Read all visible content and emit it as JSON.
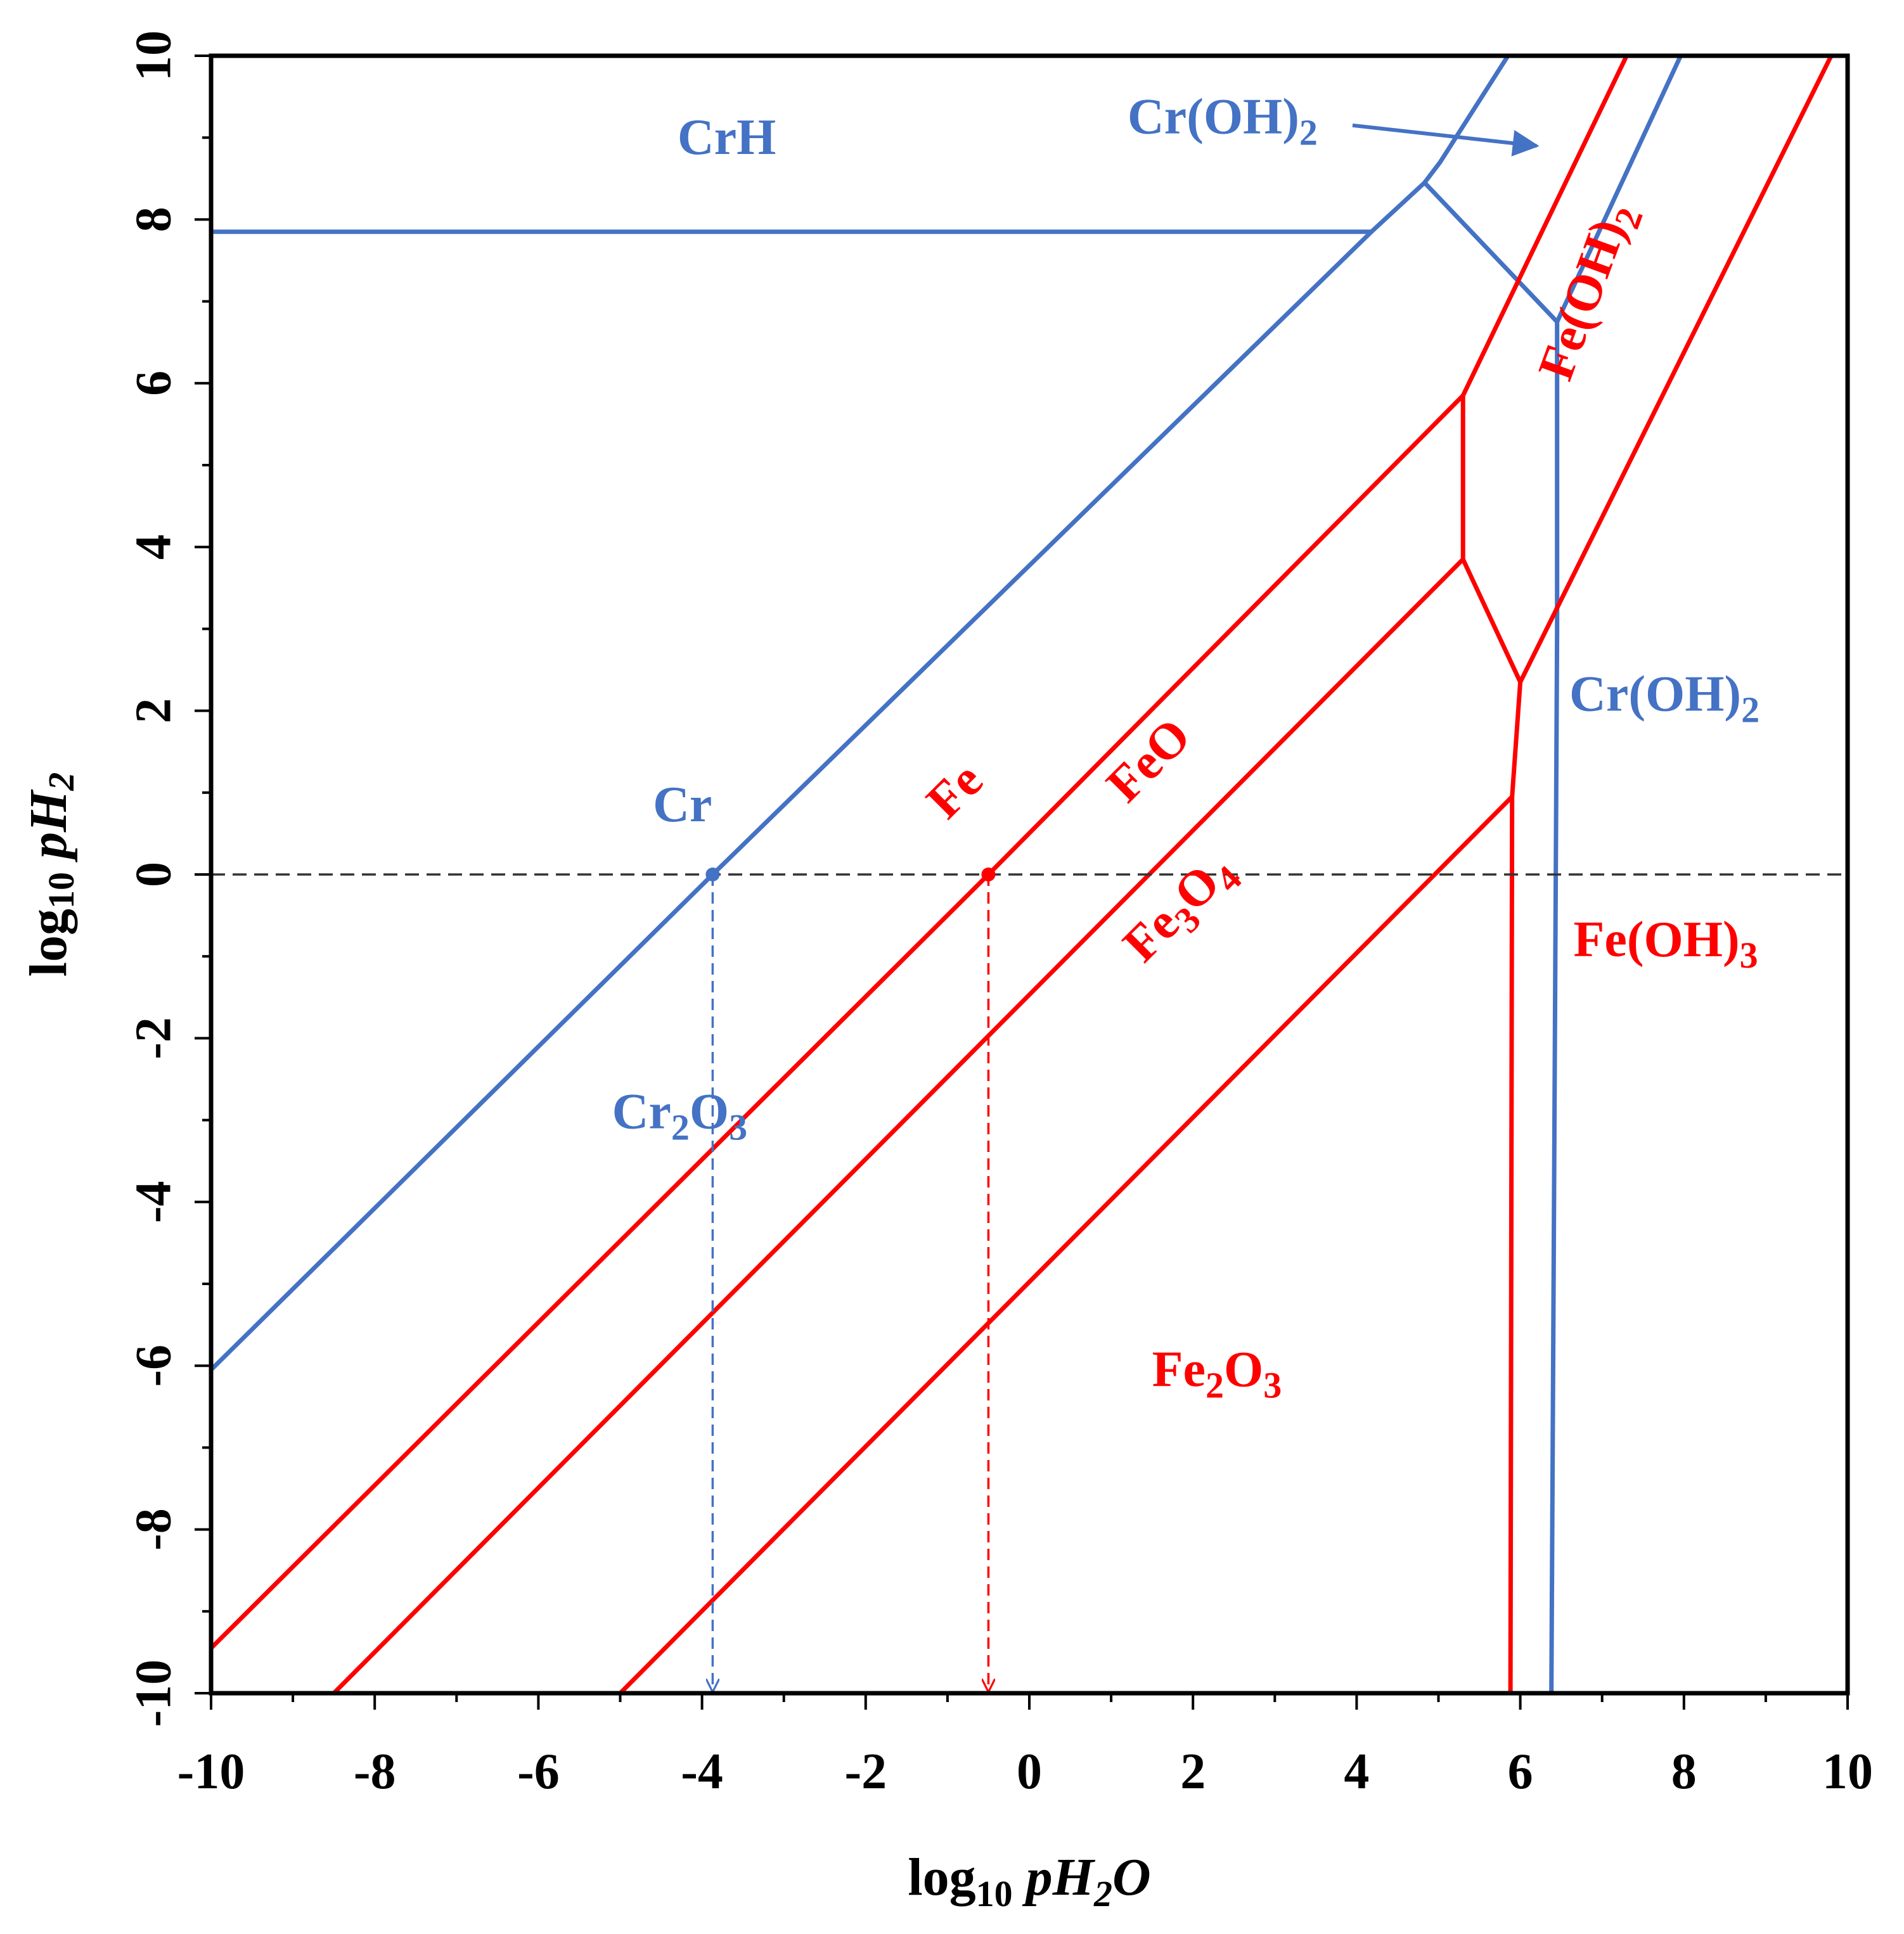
{
  "chart_data": {
    "type": "line",
    "xlabel": {
      "prefix": "log",
      "sub": "10",
      "var": "pH",
      "var_sub": "2",
      "var_end": "O"
    },
    "ylabel": {
      "prefix": "log",
      "sub": "10",
      "var": "pH",
      "var_sub": "2"
    },
    "xlim": [
      -10,
      10
    ],
    "ylim": [
      -10,
      10
    ],
    "xticks": [
      "-10",
      "-8",
      "-6",
      "-4",
      "-2",
      "0",
      "2",
      "4",
      "6",
      "8",
      "10"
    ],
    "yticks": [
      "-10",
      "-8",
      "-6",
      "-4",
      "-2",
      "0",
      "2",
      "4",
      "6",
      "8",
      "10"
    ],
    "colors": {
      "cr": "#4472c4",
      "fe": "#ff0000",
      "axis": "#000000",
      "reference": "#333333"
    },
    "series": [
      {
        "group": "cr",
        "points": [
          [
            -10,
            -6.05
          ],
          [
            -3.87,
            0
          ],
          [
            4.18,
            7.85
          ],
          [
            4.83,
            8.45
          ],
          [
            5.02,
            8.7
          ],
          [
            5.85,
            10
          ]
        ]
      },
      {
        "group": "cr",
        "points": [
          [
            -10,
            7.85
          ],
          [
            4.18,
            7.85
          ]
        ]
      },
      {
        "group": "cr",
        "points": [
          [
            4.83,
            8.45
          ],
          [
            6.45,
            6.75
          ],
          [
            6.45,
            3.0
          ],
          [
            6.38,
            -10
          ]
        ]
      },
      {
        "group": "cr",
        "points": [
          [
            6.45,
            6.75
          ],
          [
            7.96,
            10
          ]
        ]
      },
      {
        "group": "fe",
        "points": [
          [
            -10,
            -9.45
          ],
          [
            -0.5,
            0
          ],
          [
            5.3,
            5.85
          ],
          [
            5.3,
            3.85
          ],
          [
            6.0,
            2.35
          ],
          [
            5.9,
            0.95
          ],
          [
            5.88,
            -10
          ]
        ]
      },
      {
        "group": "fe",
        "points": [
          [
            5.3,
            5.85
          ],
          [
            7.3,
            10
          ]
        ]
      },
      {
        "group": "fe",
        "points": [
          [
            -8.5,
            -10
          ],
          [
            5.3,
            3.85
          ]
        ]
      },
      {
        "group": "fe",
        "points": [
          [
            -5.0,
            -10
          ],
          [
            5.9,
            0.95
          ]
        ]
      },
      {
        "group": "fe",
        "points": [
          [
            6.0,
            2.35
          ],
          [
            9.8,
            10
          ]
        ]
      }
    ],
    "reference_line": {
      "y": 0
    },
    "markers": [
      {
        "group": "cr",
        "x": -3.87,
        "y": 0
      },
      {
        "group": "fe",
        "x": -0.5,
        "y": 0
      }
    ],
    "labels": [
      {
        "group": "cr",
        "x": -4.3,
        "y": 8.8,
        "text": "CrH",
        "rot": 0
      },
      {
        "group": "cr",
        "x": -4.6,
        "y": 0.65,
        "text": "Cr",
        "rot": 0
      },
      {
        "group": "cr",
        "x": -5.1,
        "y": -3.1,
        "text": "Cr",
        "sub": "2",
        "text2": "O",
        "sub2": "3",
        "rot": 0
      },
      {
        "group": "cr",
        "x": 1.2,
        "y": 9.05,
        "text": "Cr(OH)",
        "sub": "2",
        "rot": 0
      },
      {
        "group": "cr",
        "x": 6.6,
        "y": 2.0,
        "text": "Cr(OH)",
        "sub": "2",
        "rot": 0
      },
      {
        "group": "fe",
        "x": -1.0,
        "y": 0.65,
        "text": "Fe",
        "rot": -45
      },
      {
        "group": "fe",
        "x": 1.2,
        "y": 0.85,
        "text": "FeO",
        "rot": -45
      },
      {
        "group": "fe",
        "x": 1.4,
        "y": -1.1,
        "text": "Fe",
        "sub": "3",
        "text2": "O",
        "sub2": "4",
        "rot": -45
      },
      {
        "group": "fe",
        "x": 1.5,
        "y": -6.25,
        "text": "Fe",
        "sub": "2",
        "text2": "O",
        "sub2": "3",
        "rot": 0
      },
      {
        "group": "fe",
        "x": 6.65,
        "y": -1.0,
        "text": "Fe(OH)",
        "sub": "3",
        "rot": 0
      },
      {
        "group": "fe",
        "x": 6.6,
        "y": 6.0,
        "text": "Fe(OH)",
        "sub": "2",
        "rot": -70
      }
    ],
    "arrow": {
      "group": "cr",
      "from": [
        3.95,
        9.15
      ],
      "to": [
        6.2,
        8.9
      ]
    }
  }
}
